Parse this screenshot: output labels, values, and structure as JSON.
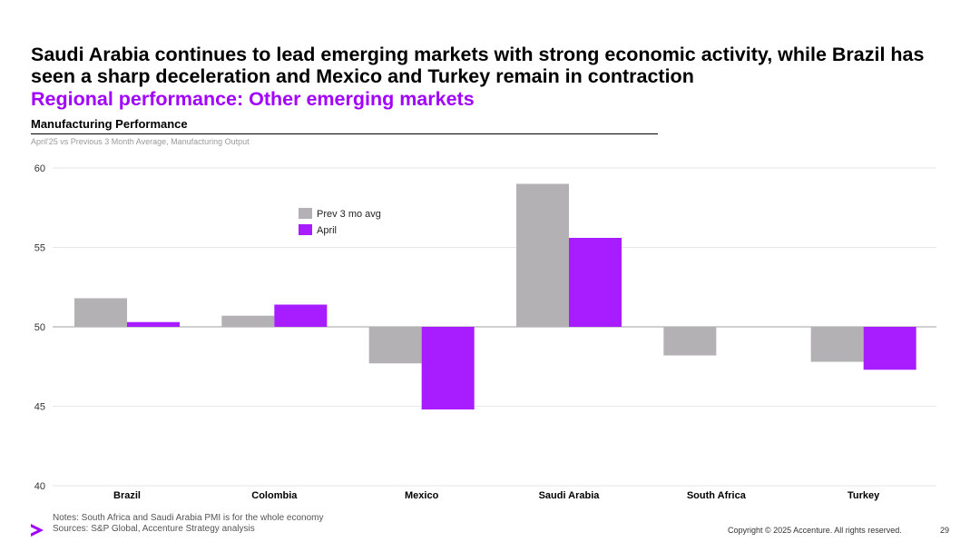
{
  "slide": {
    "headline": "Saudi Arabia continues to lead emerging markets with strong economic activity, while Brazil has seen a sharp deceleration and Mexico and Turkey remain in contraction",
    "subheadline": "Regional performance: Other emerging markets",
    "chart_title": "Manufacturing Performance",
    "chart_subtitle": "April'25 vs Previous 3 Month Average, Manufacturing Output",
    "notes": "Notes: South Africa and Saudi Arabia PMI is for the whole economy",
    "sources": "Sources: S&P Global, Accenture Strategy analysis",
    "copyright": "Copyright © 2025 Accenture. All rights reserved.",
    "page_number": "29",
    "logo_icon": "accenture-greater-than-logo-icon"
  },
  "colors": {
    "accent": "#a100ff",
    "prev": "#b3b1b3",
    "april": "#a71dff",
    "text": "#000000"
  },
  "chart_data": {
    "type": "bar",
    "title": "Manufacturing Performance",
    "subtitle": "April'25 vs Previous 3 Month Average, Manufacturing Output",
    "categories": [
      "Brazil",
      "Colombia",
      "Mexico",
      "Saudi Arabia",
      "South Africa",
      "Turkey"
    ],
    "series": [
      {
        "name": "Prev 3 mo avg",
        "values": [
          51.8,
          50.7,
          47.7,
          59.0,
          48.2,
          47.8
        ]
      },
      {
        "name": "April",
        "values": [
          50.3,
          51.4,
          44.8,
          55.6,
          null,
          47.3
        ]
      }
    ],
    "baseline": 50,
    "ylim": [
      40,
      60
    ],
    "yticks": [
      40,
      45,
      50,
      55,
      60
    ],
    "grid": true,
    "legend": "top-left-inside",
    "xlabel": "",
    "ylabel": ""
  }
}
